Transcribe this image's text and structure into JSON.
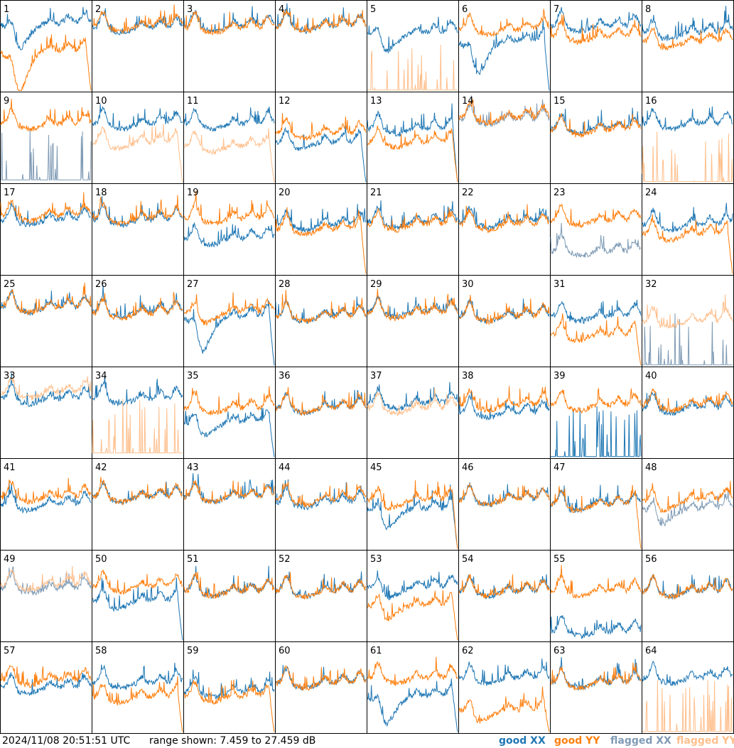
{
  "chart_data": {
    "type": "line",
    "layout": "8x8 grid of small-multiple spectra",
    "y_range_db": [
      7.459,
      27.459
    ],
    "x_axis_labels": "none",
    "y_axis_labels": "none",
    "colors": {
      "good_xx": "#1f77b4",
      "good_yy": "#ff7f0e",
      "flagged_xx": "#7f9bb5",
      "flagged_yy": "#ffbf8c"
    },
    "panels": [
      {
        "label": "1",
        "xx": "good",
        "yy": "good",
        "xx_level": 0.25,
        "yy_level": 0.55,
        "xx_dip": 0.45,
        "yy_dip": 0.75,
        "yy_drop": 1.0
      },
      {
        "label": "2",
        "xx": "good",
        "yy": "good",
        "xx_level": 0.3,
        "yy_level": 0.28,
        "xx_dip": 0.05,
        "yy_dip": 0.05
      },
      {
        "label": "3",
        "xx": "good",
        "yy": "good",
        "xx_level": 0.28,
        "yy_level": 0.3,
        "xx_dip": 0.05,
        "yy_dip": 0.05
      },
      {
        "label": "4",
        "xx": "good",
        "yy": "good",
        "xx_level": 0.28,
        "yy_level": 0.28,
        "xx_dip": 0.04,
        "yy_dip": 0.04
      },
      {
        "label": "5",
        "xx": "good",
        "yy": "flagged",
        "xx_level": 0.35,
        "yy_level": 0.99,
        "xx_dip": 0.35
      },
      {
        "label": "6",
        "xx": "good",
        "yy": "good",
        "xx_level": 0.45,
        "yy_level": 0.32,
        "xx_dip": 0.6,
        "yy_dip": 0.05,
        "xx_drop": 1.0
      },
      {
        "label": "7",
        "xx": "good",
        "yy": "good",
        "xx_level": 0.28,
        "yy_level": 0.4,
        "xx_dip": 0.05,
        "yy_dip": 0.05
      },
      {
        "label": "8",
        "xx": "good",
        "yy": "good",
        "xx_level": 0.35,
        "yy_level": 0.45,
        "xx_dip": 0.1,
        "yy_dip": 0.1
      },
      {
        "label": "9",
        "xx": "flagged",
        "yy": "good",
        "xx_level": 0.97,
        "yy_level": 0.35,
        "yy_dip": 0.05
      },
      {
        "label": "10",
        "xx": "good",
        "yy": "flagged",
        "xx_level": 0.35,
        "yy_level": 0.55,
        "xx_dip": 0.05,
        "yy_dip": 0.1,
        "yy_drop": 1.0
      },
      {
        "label": "11",
        "xx": "good",
        "yy": "flagged",
        "xx_level": 0.35,
        "yy_level": 0.6,
        "xx_dip": 0.05,
        "yy_dip": 0.05,
        "yy_drop": 1.0
      },
      {
        "label": "12",
        "xx": "good",
        "yy": "good",
        "xx_level": 0.55,
        "yy_level": 0.45,
        "xx_dip": 0.1,
        "yy_dip": 0.05,
        "xx_drop": 1.0
      },
      {
        "label": "13",
        "xx": "good",
        "yy": "good",
        "xx_level": 0.4,
        "yy_level": 0.55,
        "xx_dip": 0.05,
        "yy_dip": 0.05,
        "xx_drop": 1.0,
        "yy_drop": 1.0
      },
      {
        "label": "14",
        "xx": "flagged",
        "yy": "good",
        "xx_level": 0.3,
        "yy_level": 0.28,
        "xx_dip": 0.05,
        "yy_dip": 0.05
      },
      {
        "label": "15",
        "xx": "good",
        "yy": "good",
        "xx_level": 0.4,
        "yy_level": 0.42,
        "xx_dip": 0.05,
        "yy_dip": 0.05
      },
      {
        "label": "16",
        "xx": "good",
        "yy": "flagged",
        "xx_level": 0.35,
        "yy_level": 0.99,
        "xx_dip": 0.05
      },
      {
        "label": "17",
        "xx": "good",
        "yy": "good",
        "xx_level": 0.4,
        "yy_level": 0.35,
        "xx_dip": 0.05,
        "yy_dip": 0.05
      },
      {
        "label": "18",
        "xx": "good",
        "yy": "good",
        "xx_level": 0.4,
        "yy_level": 0.38,
        "xx_dip": 0.05,
        "yy_dip": 0.05
      },
      {
        "label": "19",
        "xx": "good",
        "yy": "good",
        "xx_level": 0.6,
        "yy_level": 0.38,
        "xx_dip": 0.1,
        "yy_dip": 0.05
      },
      {
        "label": "20",
        "xx": "good",
        "yy": "good",
        "xx_level": 0.45,
        "yy_level": 0.5,
        "xx_dip": 0.05,
        "yy_dip": 0.05,
        "yy_drop": 1.0
      },
      {
        "label": "21",
        "xx": "good",
        "yy": "good",
        "xx_level": 0.42,
        "yy_level": 0.45,
        "xx_dip": 0.05,
        "yy_dip": 0.05
      },
      {
        "label": "22",
        "xx": "good",
        "yy": "good",
        "xx_level": 0.42,
        "yy_level": 0.45,
        "xx_dip": 0.05,
        "yy_dip": 0.05
      },
      {
        "label": "23",
        "xx": "flagged",
        "yy": "good",
        "xx_level": 0.75,
        "yy_level": 0.4,
        "yy_dip": 0.05
      },
      {
        "label": "24",
        "xx": "good",
        "yy": "good",
        "xx_level": 0.45,
        "yy_level": 0.55,
        "xx_dip": 0.05,
        "yy_dip": 0.1,
        "yy_drop": 1.0
      },
      {
        "label": "25",
        "xx": "good",
        "yy": "good",
        "xx_level": 0.35,
        "yy_level": 0.35,
        "xx_dip": 0.05,
        "yy_dip": 0.05
      },
      {
        "label": "26",
        "xx": "good",
        "yy": "good",
        "xx_level": 0.4,
        "yy_level": 0.42,
        "xx_dip": 0.05,
        "yy_dip": 0.05
      },
      {
        "label": "27",
        "xx": "good",
        "yy": "good",
        "xx_level": 0.45,
        "yy_level": 0.4,
        "xx_dip": 0.65,
        "yy_dip": 0.2,
        "xx_drop": 1.0
      },
      {
        "label": "28",
        "xx": "good",
        "yy": "good",
        "xx_level": 0.45,
        "yy_level": 0.45,
        "xx_dip": 0.05,
        "yy_dip": 0.05
      },
      {
        "label": "29",
        "xx": "good",
        "yy": "good",
        "xx_level": 0.4,
        "yy_level": 0.42,
        "xx_dip": 0.05,
        "yy_dip": 0.05
      },
      {
        "label": "30",
        "xx": "good",
        "yy": "good",
        "xx_level": 0.45,
        "yy_level": 0.45,
        "xx_dip": 0.05,
        "yy_dip": 0.05
      },
      {
        "label": "31",
        "xx": "good",
        "yy": "good",
        "xx_level": 0.45,
        "yy_level": 0.65,
        "xx_dip": 0.05,
        "yy_dip": 0.1,
        "yy_drop": 1.0
      },
      {
        "label": "32",
        "xx": "flagged",
        "yy": "flagged",
        "xx_level": 0.99,
        "yy_level": 0.5,
        "yy_dip": 0.1
      },
      {
        "label": "33",
        "xx": "good",
        "yy": "flagged",
        "xx_level": 0.35,
        "yy_level": 0.28,
        "xx_dip": 0.05,
        "yy_dip": 0.05
      },
      {
        "label": "34",
        "xx": "good",
        "yy": "flagged",
        "xx_level": 0.35,
        "yy_level": 0.95,
        "xx_dip": 0.05
      },
      {
        "label": "35",
        "xx": "good",
        "yy": "good",
        "xx_level": 0.6,
        "yy_level": 0.45,
        "xx_dip": 0.25,
        "yy_dip": 0.05,
        "xx_drop": 1.0
      },
      {
        "label": "36",
        "xx": "good",
        "yy": "good",
        "xx_level": 0.45,
        "yy_level": 0.45,
        "xx_dip": 0.05,
        "yy_dip": 0.05
      },
      {
        "label": "37",
        "xx": "good",
        "yy": "flagged",
        "xx_level": 0.4,
        "yy_level": 0.45,
        "xx_dip": 0.05,
        "yy_dip": 0.05
      },
      {
        "label": "38",
        "xx": "good",
        "yy": "good",
        "xx_level": 0.5,
        "yy_level": 0.42,
        "xx_dip": 0.05,
        "yy_dip": 0.05
      },
      {
        "label": "39",
        "xx": "good",
        "yy": "good",
        "xx_level": 0.99,
        "yy_level": 0.42,
        "yy_dip": 0.05
      },
      {
        "label": "40",
        "xx": "good",
        "yy": "good",
        "xx_level": 0.45,
        "yy_level": 0.42,
        "xx_dip": 0.05,
        "yy_dip": 0.05
      },
      {
        "label": "41",
        "xx": "good",
        "yy": "good",
        "xx_level": 0.5,
        "yy_level": 0.42,
        "xx_dip": 0.1,
        "yy_dip": 0.05
      },
      {
        "label": "42",
        "xx": "good",
        "yy": "good",
        "xx_level": 0.42,
        "yy_level": 0.42,
        "xx_dip": 0.05,
        "yy_dip": 0.05
      },
      {
        "label": "43",
        "xx": "good",
        "yy": "good",
        "xx_level": 0.42,
        "yy_level": 0.42,
        "xx_dip": 0.05,
        "yy_dip": 0.05
      },
      {
        "label": "44",
        "xx": "good",
        "yy": "good",
        "xx_level": 0.48,
        "yy_level": 0.45,
        "xx_dip": 0.05,
        "yy_dip": 0.05
      },
      {
        "label": "45",
        "xx": "good",
        "yy": "good",
        "xx_level": 0.55,
        "yy_level": 0.45,
        "xx_dip": 0.35,
        "yy_dip": 0.15,
        "xx_drop": 1.0,
        "yy_drop": 1.0
      },
      {
        "label": "46",
        "xx": "good",
        "yy": "good",
        "xx_level": 0.45,
        "yy_level": 0.45,
        "xx_dip": 0.05,
        "yy_dip": 0.05
      },
      {
        "label": "47",
        "xx": "good",
        "yy": "good",
        "xx_level": 0.5,
        "yy_level": 0.5,
        "xx_dip": 0.1,
        "yy_dip": 0.1,
        "yy_drop": 1.0
      },
      {
        "label": "48",
        "xx": "flagged",
        "yy": "good",
        "xx_level": 0.55,
        "yy_level": 0.45,
        "xx_dip": 0.3,
        "yy_dip": 0.2
      },
      {
        "label": "49",
        "xx": "flagged",
        "yy": "flagged",
        "xx_level": 0.42,
        "yy_level": 0.38,
        "xx_dip": 0.05,
        "yy_dip": 0.05
      },
      {
        "label": "50",
        "xx": "good",
        "yy": "good",
        "xx_level": 0.55,
        "yy_level": 0.4,
        "xx_dip": 0.15,
        "yy_dip": 0.05,
        "xx_drop": 1.0
      },
      {
        "label": "51",
        "xx": "good",
        "yy": "good",
        "xx_level": 0.45,
        "yy_level": 0.45,
        "xx_dip": 0.05,
        "yy_dip": 0.05
      },
      {
        "label": "52",
        "xx": "good",
        "yy": "good",
        "xx_level": 0.45,
        "yy_level": 0.45,
        "xx_dip": 0.05,
        "yy_dip": 0.05
      },
      {
        "label": "53",
        "xx": "good",
        "yy": "good",
        "xx_level": 0.4,
        "yy_level": 0.6,
        "xx_dip": 0.2,
        "yy_dip": 0.25,
        "yy_drop": 1.0
      },
      {
        "label": "54",
        "xx": "good",
        "yy": "good",
        "xx_level": 0.45,
        "yy_level": 0.45,
        "xx_dip": 0.05,
        "yy_dip": 0.05
      },
      {
        "label": "55",
        "xx": "good",
        "yy": "good",
        "xx_level": 0.9,
        "yy_level": 0.45,
        "yy_dip": 0.05
      },
      {
        "label": "56",
        "xx": "good",
        "yy": "good",
        "xx_level": 0.45,
        "yy_level": 0.45,
        "xx_dip": 0.05,
        "yy_dip": 0.05
      },
      {
        "label": "57",
        "xx": "good",
        "yy": "good",
        "xx_level": 0.5,
        "yy_level": 0.42,
        "xx_dip": 0.1,
        "yy_dip": 0.05
      },
      {
        "label": "58",
        "xx": "good",
        "yy": "good",
        "xx_level": 0.45,
        "yy_level": 0.6,
        "xx_dip": 0.05,
        "yy_dip": 0.1,
        "yy_drop": 1.0
      },
      {
        "label": "59",
        "xx": "good",
        "yy": "good",
        "xx_level": 0.55,
        "yy_level": 0.6,
        "xx_dip": 0.05,
        "yy_dip": 0.05,
        "yy_drop": 1.0
      },
      {
        "label": "60",
        "xx": "good",
        "yy": "good",
        "xx_level": 0.45,
        "yy_level": 0.45,
        "xx_dip": 0.05,
        "yy_dip": 0.05
      },
      {
        "label": "61",
        "xx": "good",
        "yy": "good",
        "xx_level": 0.6,
        "yy_level": 0.4,
        "xx_dip": 0.5,
        "yy_dip": 0.05,
        "xx_drop": 1.0
      },
      {
        "label": "62",
        "xx": "good",
        "yy": "good",
        "xx_level": 0.4,
        "yy_level": 0.75,
        "xx_dip": 0.05,
        "yy_dip": 0.2,
        "yy_drop": 1.0
      },
      {
        "label": "63",
        "xx": "good",
        "yy": "good",
        "xx_level": 0.45,
        "yy_level": 0.45,
        "xx_dip": 0.05,
        "yy_dip": 0.05
      },
      {
        "label": "64",
        "xx": "good",
        "yy": "flagged",
        "xx_level": 0.4,
        "yy_level": 0.99,
        "xx_dip": 0.05
      }
    ]
  },
  "footer": {
    "timestamp": "2024/11/08 20:51:51 UTC",
    "range_text": "range shown: 7.459 to 27.459 dB",
    "legend_good_xx": "good XX",
    "legend_good_yy": "good YY",
    "legend_flagged_xx": "flagged XX",
    "legend_flagged_yy": "flagged YY"
  }
}
